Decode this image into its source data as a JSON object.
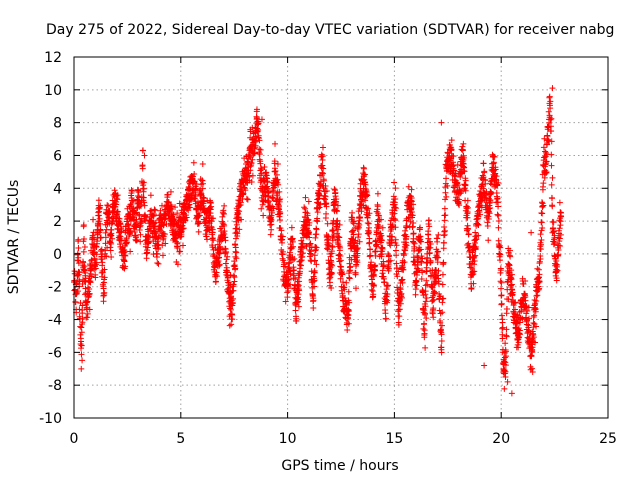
{
  "chart_data": {
    "type": "scatter",
    "title": "Day 275 of 2022, Sidereal Day-to-day VTEC variation (SDTVAR) for receiver nabg",
    "xlabel": "GPS time / hours",
    "ylabel": "SDTVAR / TECUs",
    "xlim": [
      0,
      25
    ],
    "ylim": [
      -10,
      12
    ],
    "xticks": [
      0,
      5,
      10,
      15,
      20,
      25
    ],
    "yticks": [
      -10,
      -8,
      -6,
      -4,
      -2,
      0,
      2,
      4,
      6,
      8,
      10,
      12
    ],
    "grid": true,
    "marker": "+",
    "series": [
      {
        "name": "SDTVAR",
        "color": "#ff0000",
        "x": [
          0.0,
          0.1,
          0.2,
          0.3,
          0.35,
          0.4,
          0.45,
          0.5,
          0.6,
          0.7,
          0.8,
          0.9,
          1.0,
          1.1,
          1.2,
          1.3,
          1.4,
          1.5,
          1.6,
          1.7,
          1.8,
          1.9,
          2.0,
          2.1,
          2.2,
          2.3,
          2.4,
          2.5,
          2.6,
          2.7,
          2.8,
          2.9,
          3.0,
          3.1,
          3.2,
          3.3,
          3.4,
          3.5,
          3.6,
          3.7,
          3.8,
          3.9,
          4.0,
          4.2,
          4.4,
          4.6,
          4.8,
          5.0,
          5.2,
          5.4,
          5.6,
          5.8,
          6.0,
          6.2,
          6.4,
          6.6,
          6.8,
          7.0,
          7.2,
          7.4,
          7.6,
          7.8,
          8.0,
          8.2,
          8.4,
          8.6,
          8.8,
          9.0,
          9.2,
          9.4,
          9.6,
          9.8,
          10.0,
          10.2,
          10.4,
          10.6,
          10.8,
          11.0,
          11.2,
          11.4,
          11.6,
          11.8,
          12.0,
          12.2,
          12.4,
          12.6,
          12.8,
          13.0,
          13.2,
          13.4,
          13.6,
          13.8,
          14.0,
          14.2,
          14.4,
          14.6,
          14.8,
          15.0,
          15.2,
          15.4,
          15.6,
          15.8,
          16.0,
          16.2,
          16.4,
          16.6,
          16.8,
          17.0,
          17.2,
          17.4,
          17.6,
          17.8,
          18.0,
          18.2,
          18.4,
          18.6,
          18.8,
          19.0,
          19.2,
          19.4,
          19.6,
          19.8,
          20.0,
          20.1,
          20.2,
          20.3,
          20.4,
          20.5,
          20.6,
          20.8,
          21.0,
          21.2,
          21.4,
          21.6,
          21.8,
          22.0,
          22.1,
          22.2,
          22.3,
          22.4,
          22.5,
          22.6,
          22.7,
          22.8
        ],
        "y": [
          -1.2,
          -2.8,
          0.5,
          -5.5,
          -6.5,
          -2.0,
          1.2,
          -1.5,
          -3.8,
          -2.0,
          -0.5,
          0.8,
          -1.0,
          1.5,
          2.5,
          -0.8,
          -2.5,
          1.8,
          2.8,
          0.5,
          2.0,
          3.2,
          2.5,
          1.8,
          1.0,
          -0.5,
          0.8,
          2.2,
          1.5,
          3.5,
          2.0,
          0.8,
          4.5,
          1.2,
          5.0,
          2.5,
          0.5,
          1.0,
          2.8,
          1.8,
          1.5,
          0.2,
          2.0,
          1.5,
          3.2,
          2.0,
          1.0,
          1.8,
          2.5,
          3.8,
          4.5,
          2.5,
          3.8,
          1.5,
          2.8,
          -1.5,
          0.5,
          2.0,
          -2.0,
          -3.5,
          1.5,
          3.5,
          4.5,
          5.5,
          6.5,
          8.0,
          3.5,
          4.5,
          2.0,
          5.0,
          3.2,
          -1.0,
          -2.0,
          1.0,
          -3.5,
          -0.5,
          2.0,
          1.5,
          -2.5,
          3.0,
          5.5,
          2.5,
          -1.8,
          3.5,
          0.5,
          -2.5,
          -4.0,
          2.0,
          -1.0,
          3.5,
          4.5,
          1.5,
          -2.5,
          2.5,
          0.5,
          -3.5,
          1.0,
          3.0,
          -4.0,
          -0.5,
          2.5,
          3.5,
          -2.0,
          1.5,
          -4.5,
          2.0,
          -3.5,
          0.5,
          -5.5,
          5.0,
          6.0,
          4.5,
          3.5,
          6.5,
          2.0,
          -1.5,
          1.0,
          3.0,
          4.5,
          2.0,
          5.5,
          4.0,
          -2.0,
          -6.5,
          -7.0,
          -1.5,
          -0.5,
          -2.5,
          -3.5,
          -5.0,
          -2.0,
          -4.0,
          -6.5,
          -3.0,
          -1.0,
          6.0,
          5.0,
          8.0,
          9.5,
          2.0,
          0.5,
          -1.5,
          1.0,
          2.5
        ],
        "extra_points": {
          "x": [
            22.4,
            21.4,
            20.5,
            20.3,
            17.2,
            8.8,
            3.3,
            19.2,
            20.2,
            20.1
          ],
          "y": [
            10.1,
            1.3,
            -8.5,
            -7.8,
            8.0,
            8.2,
            6.0,
            -6.8,
            -7.5,
            -7.2
          ]
        }
      }
    ]
  }
}
